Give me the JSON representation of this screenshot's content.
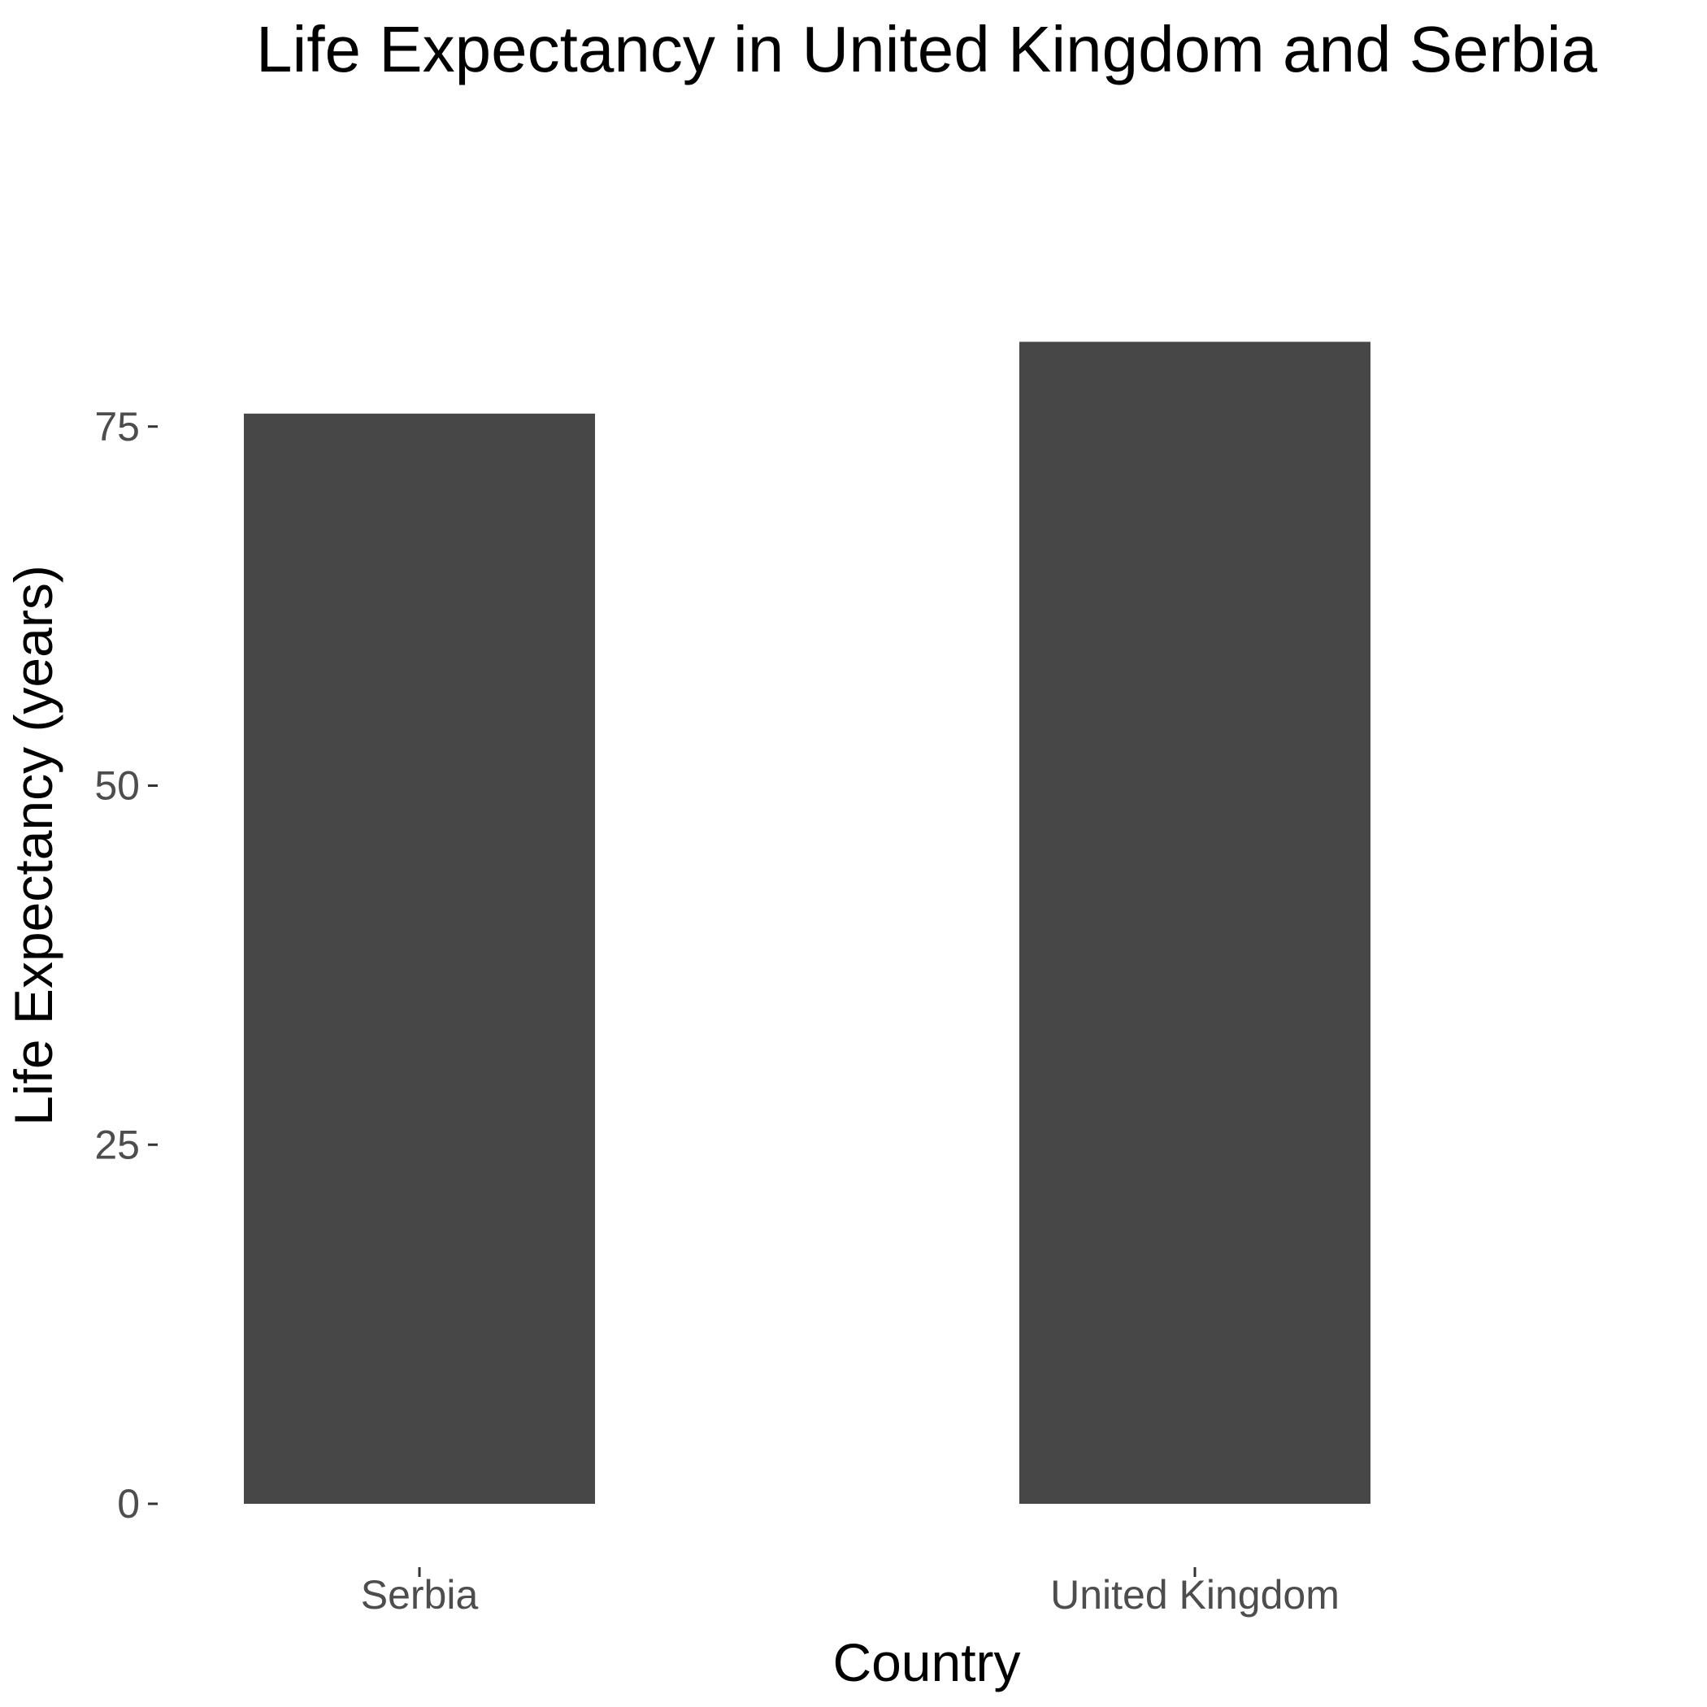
{
  "chart_data": {
    "type": "bar",
    "title": "Life Expectancy in United Kingdom and Serbia",
    "xlabel": "Country",
    "ylabel": "Life Expectancy (years)",
    "categories": [
      "Serbia",
      "United Kingdom"
    ],
    "values": [
      75.9,
      80.9
    ],
    "ylim": [
      0,
      85
    ],
    "yticks": [
      0,
      25,
      50,
      75
    ],
    "bar_color": "#474747",
    "tick_label_color": "#4d4d4d",
    "grid": false,
    "legend": "none"
  }
}
